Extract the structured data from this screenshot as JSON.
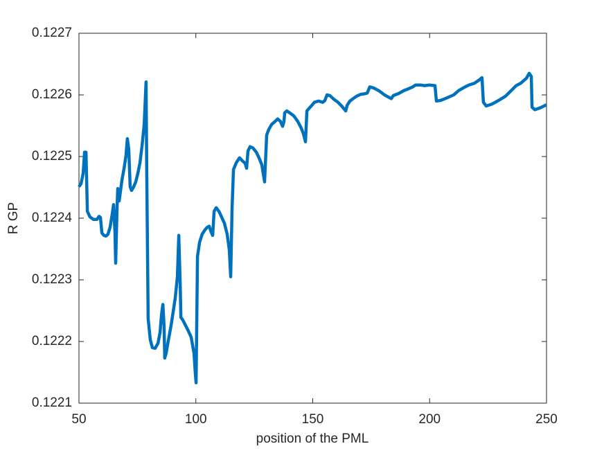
{
  "chart_data": {
    "type": "line",
    "xlabel": "position of the PML",
    "ylabel": "R GP",
    "color": "#0072bd",
    "grid": false,
    "xlim": [
      50,
      250
    ],
    "ylim": [
      0.1221,
      0.1227
    ],
    "xticks": [
      50,
      100,
      150,
      200,
      250
    ],
    "yticks": [
      0.1221,
      0.1222,
      0.1223,
      0.1224,
      0.1225,
      0.1226,
      0.1227
    ],
    "x": [
      50.0,
      50.9,
      51.8,
      52.4,
      53.0,
      53.6,
      54.7,
      56.2,
      57.7,
      58.6,
      59.2,
      59.8,
      60.7,
      61.6,
      62.4,
      63.3,
      64.2,
      64.8,
      65.4,
      65.7,
      66.3,
      66.6,
      67.2,
      67.8,
      68.4,
      69.3,
      70.1,
      70.7,
      71.3,
      71.9,
      72.5,
      73.4,
      74.3,
      75.2,
      76.1,
      77.0,
      77.9,
      78.7,
      79.0,
      79.6,
      80.5,
      81.4,
      82.6,
      83.8,
      84.7,
      85.3,
      85.9,
      86.4,
      86.7,
      87.3,
      88.2,
      89.4,
      90.3,
      91.2,
      92.1,
      92.7,
      93.3,
      93.6,
      94.4,
      95.6,
      96.8,
      98.0,
      99.2,
      99.8,
      100.1,
      100.7,
      101.6,
      102.7,
      103.9,
      104.8,
      105.7,
      106.6,
      107.2,
      107.8,
      108.7,
      109.9,
      111.0,
      112.2,
      113.4,
      114.3,
      114.9,
      115.5,
      116.1,
      117.3,
      118.7,
      119.9,
      121.1,
      121.7,
      122.3,
      123.2,
      124.4,
      125.9,
      127.0,
      128.2,
      129.4,
      130.3,
      131.2,
      132.4,
      133.9,
      135.0,
      136.2,
      137.1,
      137.7,
      138.0,
      138.9,
      140.1,
      141.9,
      143.6,
      145.1,
      146.0,
      146.9,
      147.5,
      148.4,
      149.6,
      150.7,
      152.5,
      154.3,
      155.2,
      156.1,
      157.3,
      159.0,
      160.8,
      162.6,
      164.1,
      164.7,
      165.9,
      167.3,
      168.8,
      170.6,
      172.4,
      173.3,
      174.4,
      176.2,
      178.6,
      180.7,
      182.1,
      183.6,
      184.5,
      186.6,
      189.0,
      191.0,
      192.8,
      194.0,
      196.1,
      197.9,
      199.9,
      202.3,
      202.9,
      204.7,
      207.3,
      210.3,
      212.4,
      214.7,
      216.8,
      219.2,
      221.5,
      222.4,
      223.0,
      224.2,
      226.6,
      229.5,
      232.5,
      234.9,
      237.0,
      239.0,
      241.4,
      242.6,
      243.5,
      243.8,
      245.0,
      247.3,
      250.0
    ],
    "values": [
      0.122451,
      0.122456,
      0.122473,
      0.122507,
      0.122507,
      0.122411,
      0.122402,
      0.122398,
      0.122398,
      0.122403,
      0.122401,
      0.122376,
      0.122372,
      0.122371,
      0.122374,
      0.122385,
      0.122406,
      0.122422,
      0.122377,
      0.122327,
      0.122417,
      0.122448,
      0.122428,
      0.122445,
      0.122462,
      0.122481,
      0.122501,
      0.122529,
      0.122512,
      0.122451,
      0.122445,
      0.122451,
      0.122459,
      0.122473,
      0.12249,
      0.122518,
      0.122552,
      0.122621,
      0.122473,
      0.122237,
      0.122203,
      0.12219,
      0.122189,
      0.122197,
      0.122215,
      0.122243,
      0.12226,
      0.122226,
      0.122173,
      0.122181,
      0.122201,
      0.122226,
      0.122248,
      0.122271,
      0.122305,
      0.122372,
      0.122293,
      0.122239,
      0.122235,
      0.122226,
      0.122217,
      0.122207,
      0.122181,
      0.122147,
      0.122133,
      0.122338,
      0.122361,
      0.122374,
      0.122381,
      0.122385,
      0.122387,
      0.122377,
      0.122372,
      0.122411,
      0.122417,
      0.122411,
      0.122402,
      0.122392,
      0.122374,
      0.122349,
      0.122305,
      0.122417,
      0.122479,
      0.12249,
      0.122498,
      0.122493,
      0.122489,
      0.122481,
      0.122509,
      0.122516,
      0.122514,
      0.122507,
      0.122498,
      0.122487,
      0.122459,
      0.122535,
      0.122544,
      0.122552,
      0.122557,
      0.122561,
      0.122557,
      0.122549,
      0.122557,
      0.122571,
      0.122574,
      0.122571,
      0.122566,
      0.122557,
      0.122546,
      0.122537,
      0.122524,
      0.122574,
      0.122578,
      0.122583,
      0.122588,
      0.12259,
      0.122588,
      0.122591,
      0.1226,
      0.122599,
      0.122593,
      0.122588,
      0.122581,
      0.122574,
      0.122583,
      0.12259,
      0.122594,
      0.122598,
      0.122601,
      0.122602,
      0.122603,
      0.122613,
      0.122611,
      0.122606,
      0.1226,
      0.122597,
      0.122594,
      0.122599,
      0.122602,
      0.122607,
      0.12261,
      0.122613,
      0.122616,
      0.122616,
      0.122615,
      0.122616,
      0.122615,
      0.12259,
      0.122591,
      0.122595,
      0.1226,
      0.122607,
      0.122612,
      0.122616,
      0.122619,
      0.122625,
      0.122628,
      0.122588,
      0.122582,
      0.122585,
      0.122591,
      0.122598,
      0.122607,
      0.122615,
      0.122619,
      0.122627,
      0.122635,
      0.12263,
      0.12258,
      0.122576,
      0.122579,
      0.122584
    ]
  }
}
